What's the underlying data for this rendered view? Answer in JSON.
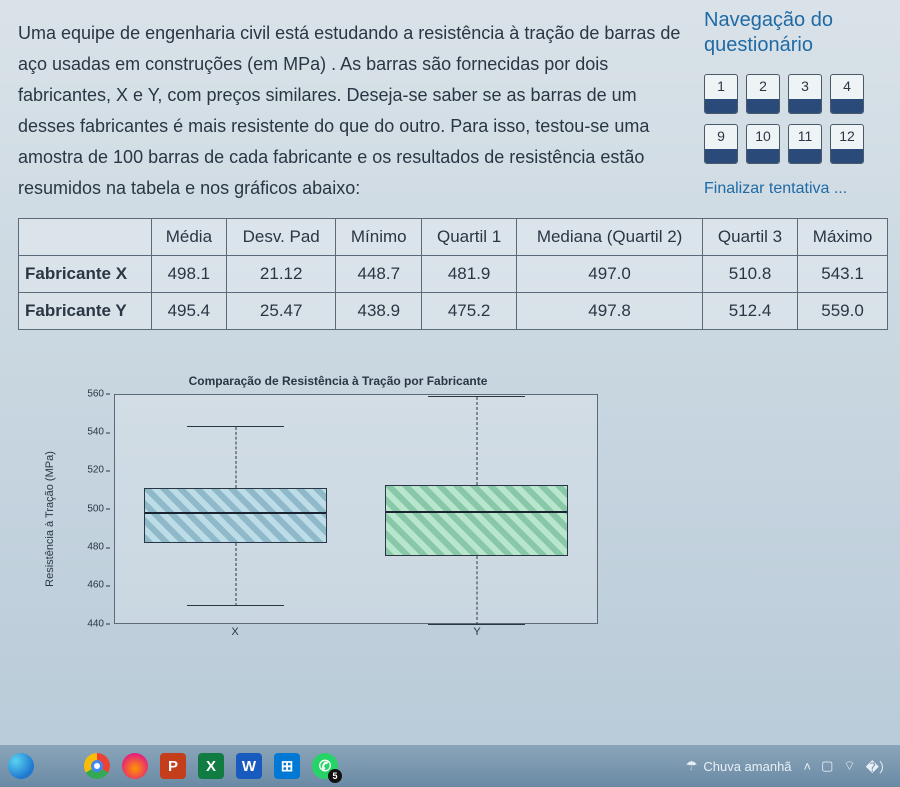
{
  "question": {
    "text": "Uma equipe de engenharia civil está estudando a resistência à tração de barras de aço usadas em construções (em MPa) . As barras são fornecidas por dois fabricantes, X e Y, com preços similares. Deseja-se saber se as barras de um desses fabricantes é mais resistente do que do outro. Para isso, testou-se uma amostra de 100 barras de cada fabricante e os resultados de resistência estão resumidos na tabela e nos gráficos abaixo:"
  },
  "table": {
    "columns": [
      "",
      "Média",
      "Desv. Pad",
      "Mínimo",
      "Quartil 1",
      "Mediana (Quartil 2)",
      "Quartil 3",
      "Máximo"
    ],
    "rows": [
      {
        "label": "Fabricante X",
        "cells": [
          "498.1",
          "21.12",
          "448.7",
          "481.9",
          "497.0",
          "510.8",
          "543.1"
        ]
      },
      {
        "label": "Fabricante Y",
        "cells": [
          "495.4",
          "25.47",
          "438.9",
          "475.2",
          "497.8",
          "512.4",
          "559.0"
        ]
      }
    ],
    "font_size": 17,
    "border_color": "#5a6a78"
  },
  "chart": {
    "type": "boxplot",
    "title": "Comparação de Resistência à Tração por Fabricante",
    "title_fontsize": 12,
    "ylabel": "Resistência à Tração (MPa)",
    "label_fontsize": 11,
    "ylim": [
      440,
      560
    ],
    "ytick_step": 20,
    "yticks": [
      440,
      460,
      480,
      500,
      520,
      540,
      560
    ],
    "background_color": "rgba(255,255,255,0.18)",
    "border_color": "#5a6a78",
    "series": [
      {
        "label": "X",
        "min": 448.7,
        "q1": 481.9,
        "median": 497.0,
        "q3": 510.8,
        "max": 543.1,
        "fill_colors": [
          "#8fb8c8",
          "#bcdce8"
        ]
      },
      {
        "label": "Y",
        "min": 438.9,
        "q1": 475.2,
        "median": 497.8,
        "q3": 512.4,
        "max": 559.0,
        "fill_colors": [
          "#88c8a8",
          "#b8e6cc"
        ]
      }
    ]
  },
  "sidebar": {
    "title_line1": "Navegação do",
    "title_line2": "questionário",
    "nav_row1": [
      "1",
      "2",
      "3",
      "4"
    ],
    "nav_row2": [
      "9",
      "10",
      "11",
      "12"
    ],
    "finish_label": "Finalizar tentativa ..."
  },
  "taskbar": {
    "icons": [
      {
        "name": "edge-icon",
        "class": "tb-edge",
        "glyph": ""
      },
      {
        "name": "blank-icon",
        "class": "tb-blank",
        "glyph": ""
      },
      {
        "name": "chrome-icon",
        "class": "tb-chrome",
        "glyph": ""
      },
      {
        "name": "firefox-icon",
        "class": "tb-firefox",
        "glyph": ""
      },
      {
        "name": "ppt-icon",
        "class": "tb-ppt",
        "glyph": "P"
      },
      {
        "name": "excel-icon",
        "class": "tb-xls",
        "glyph": "X"
      },
      {
        "name": "word-icon",
        "class": "tb-word",
        "glyph": "W"
      },
      {
        "name": "store-icon",
        "class": "tb-store",
        "glyph": "⊞"
      },
      {
        "name": "whatsapp-icon",
        "class": "tb-wa",
        "glyph": "✆",
        "badge": "5"
      }
    ],
    "weather_icon": "☂",
    "weather_text": "Chuva amanhã",
    "tray": {
      "chevron": "˄",
      "battery": "▢",
      "net": "⌔",
      "wifi": "�）"
    }
  },
  "colors": {
    "page_bg_top": "#d9e2e8",
    "page_bg_bottom": "#b8cad8",
    "text": "#2a3644",
    "link": "#1f6aa5",
    "nav_fill": "#2a4a7a",
    "nav_bg": "#eef3f6",
    "taskbar_top": "#8aa5ba",
    "taskbar_bottom": "#6a8aa4"
  }
}
